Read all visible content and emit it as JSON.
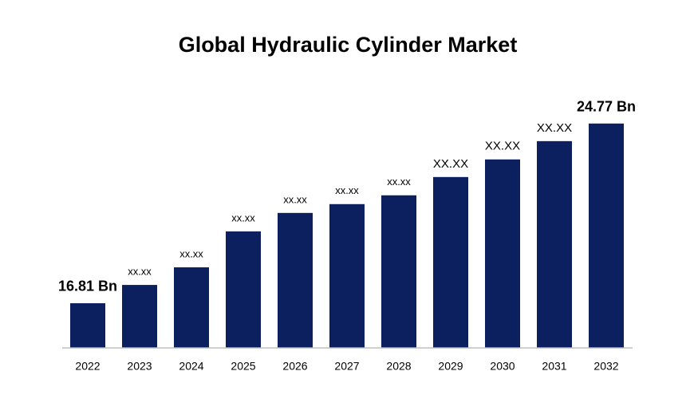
{
  "chart_data": {
    "type": "bar",
    "title": "Global Hydraulic Cylinder Market",
    "categories": [
      "2022",
      "2023",
      "2024",
      "2025",
      "2026",
      "2027",
      "2028",
      "2029",
      "2030",
      "2031",
      "2032"
    ],
    "values": [
      16.81,
      17.62,
      18.4,
      19.99,
      20.81,
      21.2,
      21.59,
      22.4,
      23.18,
      23.99,
      24.77
    ],
    "value_labels": [
      "16.81 Bn",
      "xx.xx",
      "xx.xx",
      "xx.xx",
      "xx.xx",
      "xx.xx",
      "xx.xx",
      "XX.XX",
      "XX.XX",
      "XX.XX",
      "24.77 Bn"
    ],
    "color": "#0c1f5e",
    "ylim": [
      14.83,
      26
    ]
  }
}
